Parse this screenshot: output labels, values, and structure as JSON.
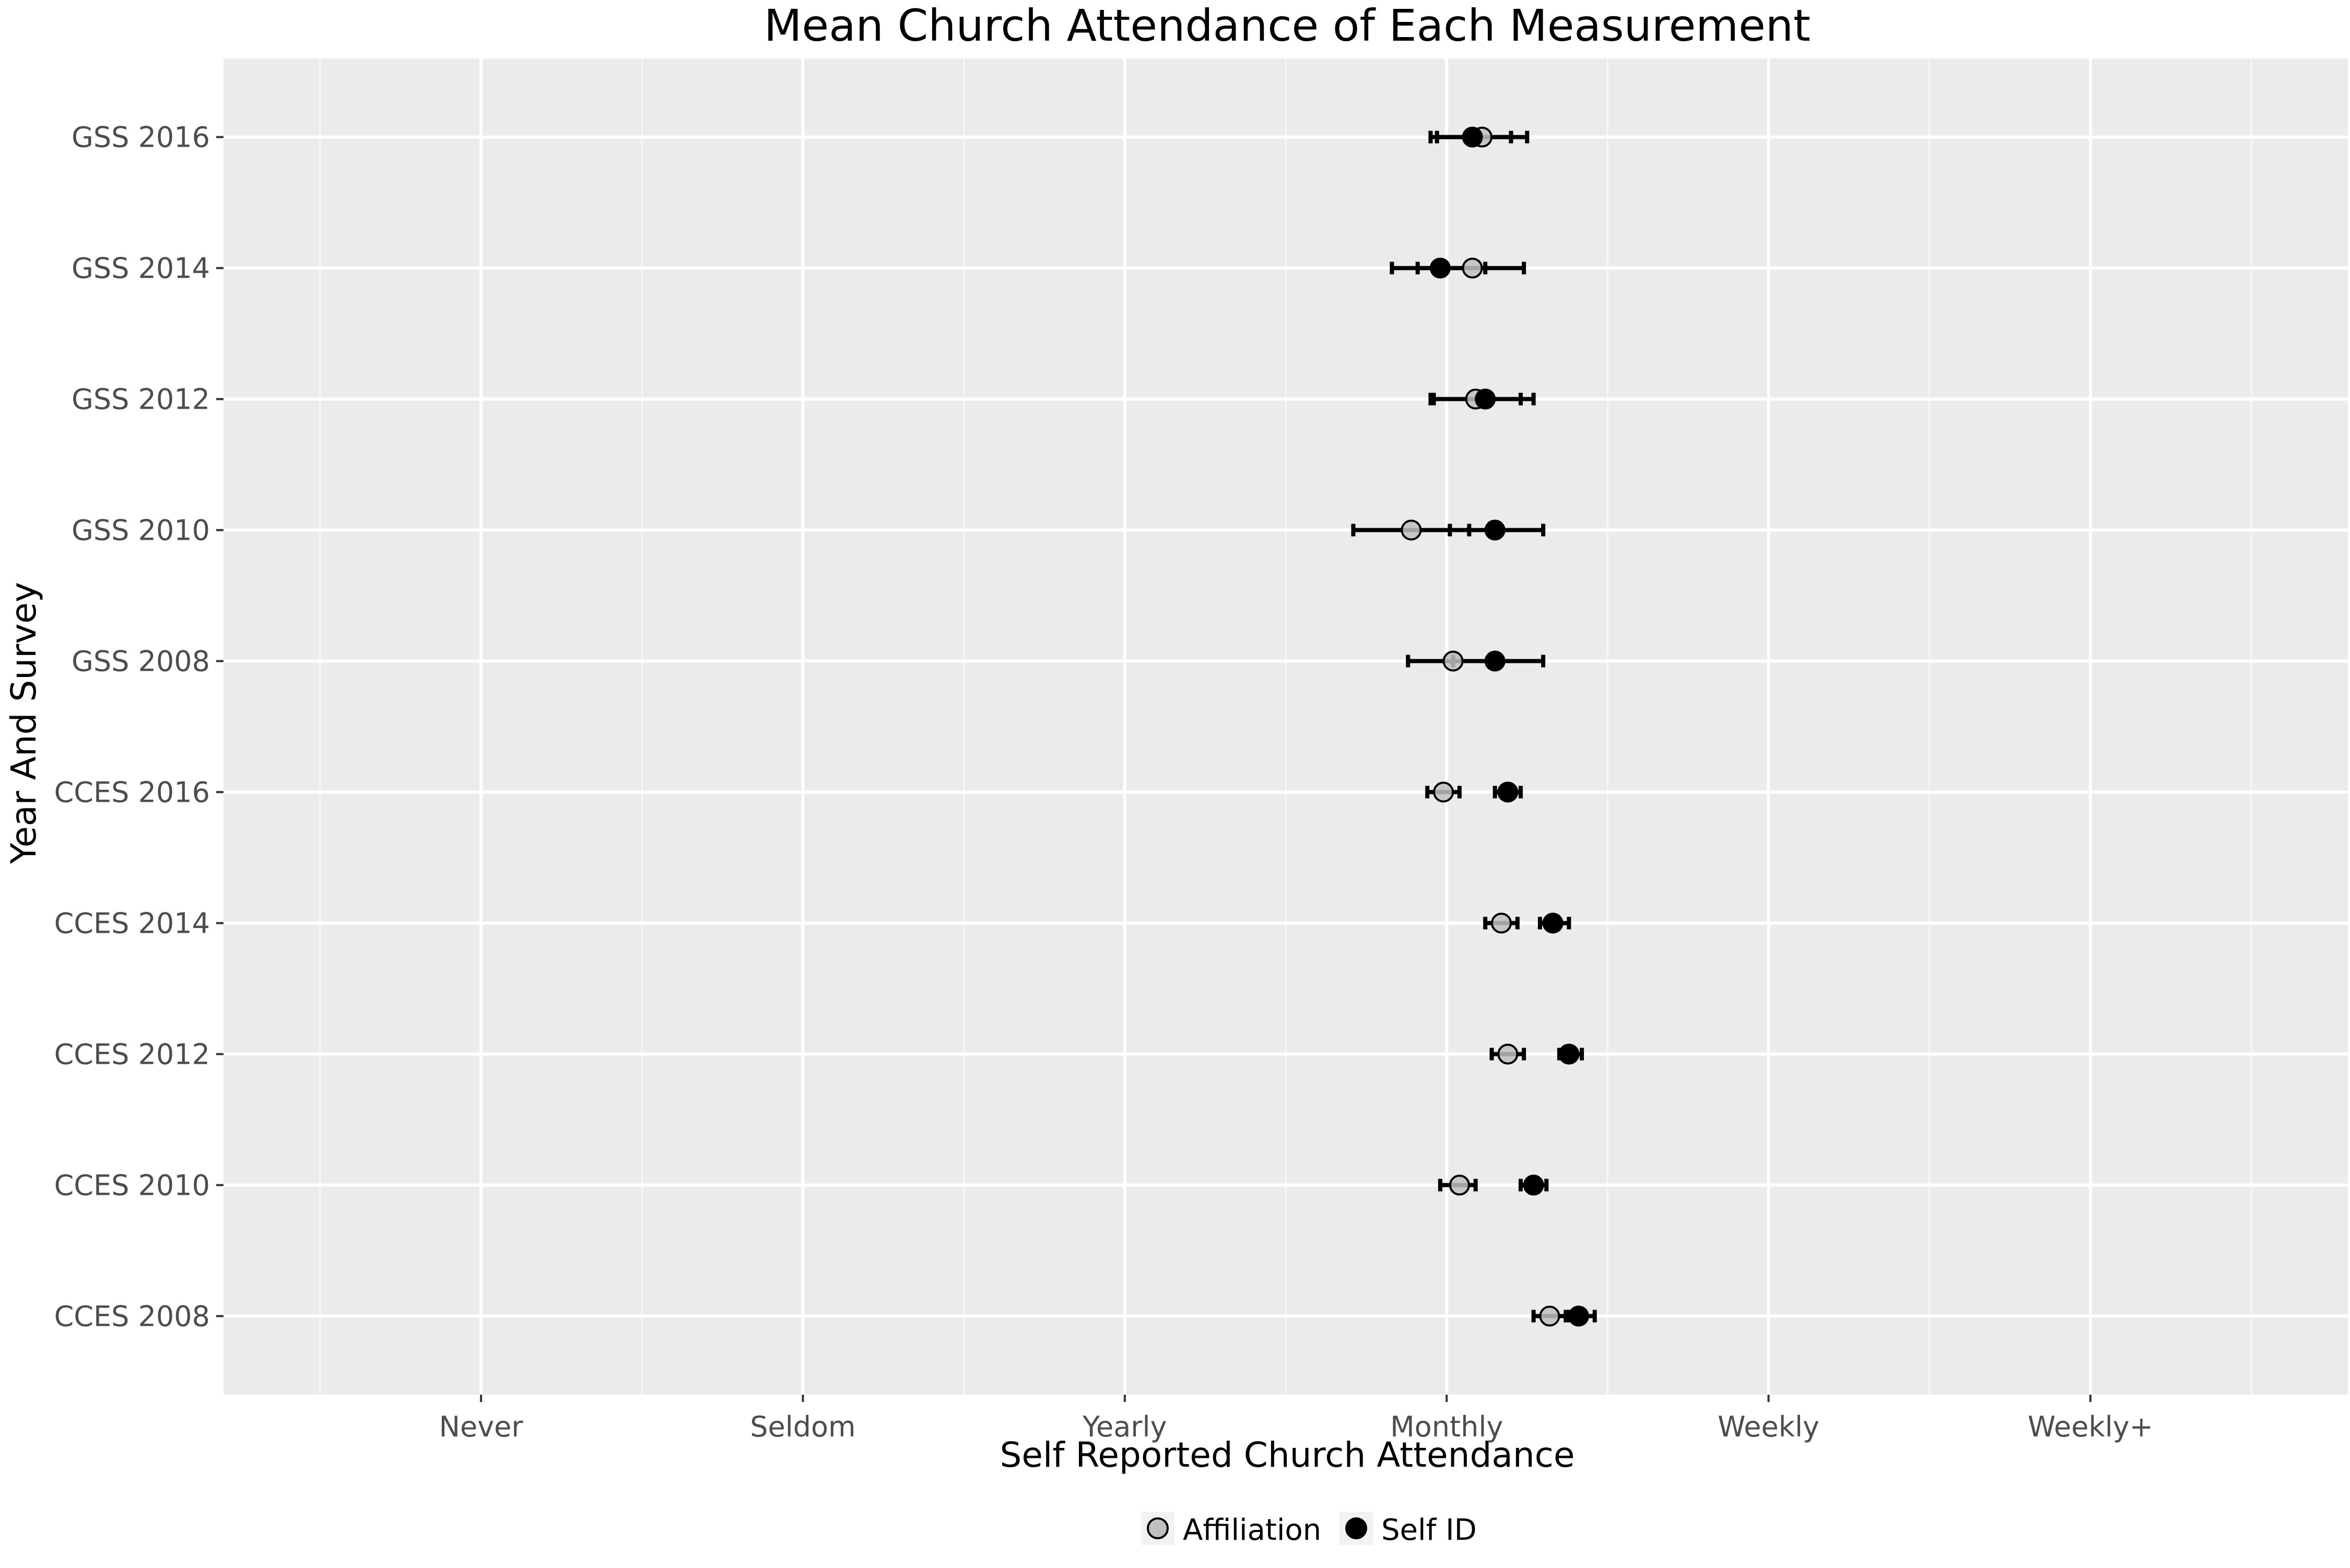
{
  "chart_data": {
    "type": "scatter",
    "variant": "dot-and-whisker",
    "title": "Mean Church Attendance of Each Measurement",
    "xlabel": "Self Reported Church Attendance",
    "ylabel": "Year And Survey",
    "x_ticks": [
      {
        "value": 1,
        "label": "Never"
      },
      {
        "value": 2,
        "label": "Seldom"
      },
      {
        "value": 3,
        "label": "Yearly"
      },
      {
        "value": 4,
        "label": "Monthly"
      },
      {
        "value": 5,
        "label": "Weekly"
      },
      {
        "value": 6,
        "label": "Weekly+"
      }
    ],
    "xlim": [
      0.2,
      6.8
    ],
    "categories": [
      "GSS 2016",
      "GSS 2014",
      "GSS 2012",
      "GSS 2010",
      "GSS 2008",
      "CCES 2016",
      "CCES 2014",
      "CCES 2012",
      "CCES 2010",
      "CCES 2008"
    ],
    "series": [
      {
        "name": "Affiliation",
        "color": "#c0c0c0",
        "points": [
          {
            "category": "GSS 2016",
            "mean": 4.11,
            "low": 3.97,
            "high": 4.25
          },
          {
            "category": "GSS 2014",
            "mean": 4.08,
            "low": 3.91,
            "high": 4.24
          },
          {
            "category": "GSS 2012",
            "mean": 4.09,
            "low": 3.96,
            "high": 4.23
          },
          {
            "category": "GSS 2010",
            "mean": 3.89,
            "low": 3.71,
            "high": 4.07
          },
          {
            "category": "GSS 2008",
            "mean": 4.02,
            "low": 3.88,
            "high": 4.16
          },
          {
            "category": "CCES 2016",
            "mean": 3.99,
            "low": 3.94,
            "high": 4.04
          },
          {
            "category": "CCES 2014",
            "mean": 4.17,
            "low": 4.12,
            "high": 4.22
          },
          {
            "category": "CCES 2012",
            "mean": 4.19,
            "low": 4.14,
            "high": 4.24
          },
          {
            "category": "CCES 2010",
            "mean": 4.04,
            "low": 3.98,
            "high": 4.09
          },
          {
            "category": "CCES 2008",
            "mean": 4.32,
            "low": 4.27,
            "high": 4.38
          }
        ]
      },
      {
        "name": "Self ID",
        "color": "#000000",
        "points": [
          {
            "category": "GSS 2016",
            "mean": 4.08,
            "low": 3.95,
            "high": 4.2
          },
          {
            "category": "GSS 2014",
            "mean": 3.98,
            "low": 3.83,
            "high": 4.12
          },
          {
            "category": "GSS 2012",
            "mean": 4.12,
            "low": 3.95,
            "high": 4.27
          },
          {
            "category": "GSS 2010",
            "mean": 4.15,
            "low": 4.01,
            "high": 4.3
          },
          {
            "category": "GSS 2008",
            "mean": 4.15,
            "low": 4.02,
            "high": 4.3
          },
          {
            "category": "CCES 2016",
            "mean": 4.19,
            "low": 4.15,
            "high": 4.23
          },
          {
            "category": "CCES 2014",
            "mean": 4.33,
            "low": 4.29,
            "high": 4.38
          },
          {
            "category": "CCES 2012",
            "mean": 4.38,
            "low": 4.35,
            "high": 4.42
          },
          {
            "category": "CCES 2010",
            "mean": 4.27,
            "low": 4.23,
            "high": 4.31
          },
          {
            "category": "CCES 2008",
            "mean": 4.41,
            "low": 4.37,
            "high": 4.46
          }
        ]
      }
    ],
    "grid": true,
    "legend": {
      "position": "bottom",
      "entries": [
        "Affiliation",
        "Self ID"
      ]
    }
  }
}
